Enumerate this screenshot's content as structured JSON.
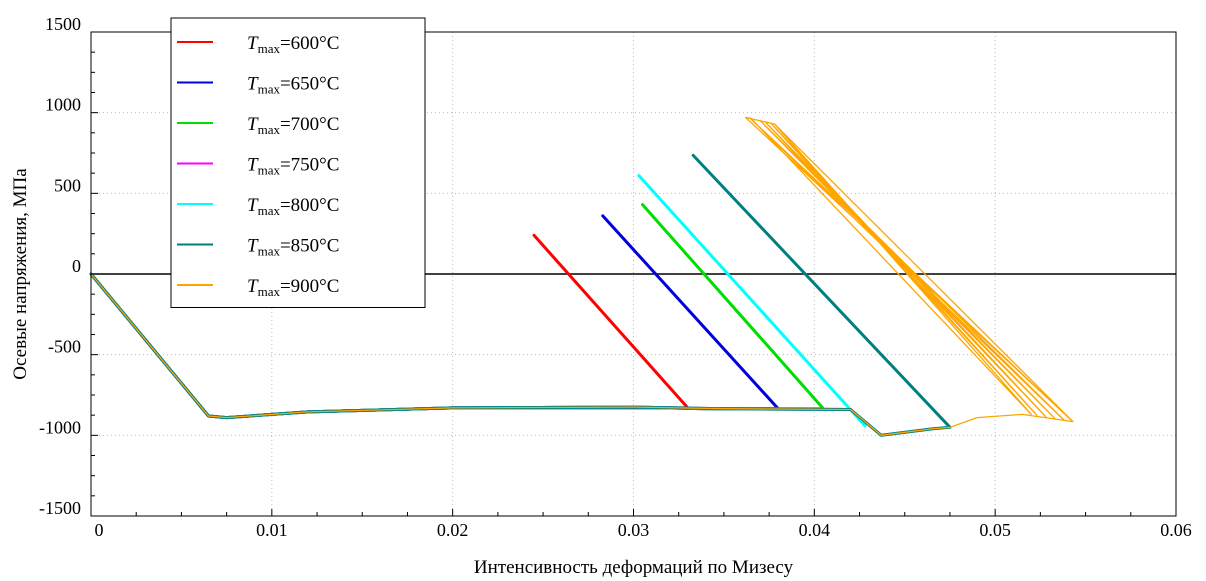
{
  "chart_data": {
    "type": "line",
    "title": "",
    "xlabel": "Интенсивность деформаций по Мизесу",
    "ylabel": "Осевые напряжения, МПа",
    "xlim": [
      0,
      0.06
    ],
    "ylim": [
      -1500,
      1500
    ],
    "x_ticks": [
      0,
      0.01,
      0.02,
      0.03,
      0.04,
      0.05,
      0.06
    ],
    "x_tick_labels": [
      "0",
      "0.01",
      "0.02",
      "0.03",
      "0.04",
      "0.05",
      "0.06"
    ],
    "y_ticks": [
      -1500,
      -1000,
      -500,
      0,
      500,
      1000,
      1500
    ],
    "y_tick_labels": [
      "-1500",
      "-1000",
      "-500",
      "0",
      "500",
      "1000",
      "1500"
    ],
    "grid": true,
    "legend_position": "top-left",
    "zero_line": true,
    "series": [
      {
        "name_prefix": "T",
        "name_sub": "max",
        "name_suffix": "=600°C",
        "color": "#ff0000",
        "points": [
          [
            0,
            0
          ],
          [
            0.0065,
            -880
          ],
          [
            0.0075,
            -890
          ],
          [
            0.012,
            -855
          ],
          [
            0.02,
            -830
          ],
          [
            0.033,
            -830
          ],
          [
            0.0245,
            240
          ]
        ]
      },
      {
        "name_prefix": "T",
        "name_sub": "max",
        "name_suffix": "=650°C",
        "color": "#0000dd",
        "points": [
          [
            0,
            0
          ],
          [
            0.0065,
            -880
          ],
          [
            0.0075,
            -890
          ],
          [
            0.012,
            -855
          ],
          [
            0.02,
            -830
          ],
          [
            0.03,
            -825
          ],
          [
            0.034,
            -835
          ],
          [
            0.038,
            -835
          ],
          [
            0.0283,
            360
          ]
        ]
      },
      {
        "name_prefix": "T",
        "name_sub": "max",
        "name_suffix": "=700°C",
        "color": "#00dd00",
        "points": [
          [
            0,
            0
          ],
          [
            0.0065,
            -880
          ],
          [
            0.0075,
            -890
          ],
          [
            0.012,
            -855
          ],
          [
            0.02,
            -830
          ],
          [
            0.03,
            -825
          ],
          [
            0.034,
            -835
          ],
          [
            0.0405,
            -835
          ],
          [
            0.0305,
            430
          ]
        ]
      },
      {
        "name_prefix": "T",
        "name_sub": "max",
        "name_suffix": "=750°C",
        "color": "#ff00ff",
        "points": [
          [
            0,
            0
          ],
          [
            0.0065,
            -880
          ],
          [
            0.0075,
            -890
          ],
          [
            0.012,
            -855
          ],
          [
            0.02,
            -830
          ],
          [
            0.03,
            -825
          ],
          [
            0.035,
            -835
          ],
          [
            0.042,
            -840
          ]
        ]
      },
      {
        "name_prefix": "T",
        "name_sub": "max",
        "name_suffix": "=800°C",
        "color": "#00ffff",
        "points": [
          [
            0,
            0
          ],
          [
            0.0065,
            -880
          ],
          [
            0.0075,
            -890
          ],
          [
            0.012,
            -855
          ],
          [
            0.02,
            -830
          ],
          [
            0.03,
            -825
          ],
          [
            0.035,
            -835
          ],
          [
            0.042,
            -840
          ],
          [
            0.0428,
            -940
          ],
          [
            0.0303,
            610
          ]
        ]
      },
      {
        "name_prefix": "T",
        "name_sub": "max",
        "name_suffix": "=850°C",
        "color": "#007f7f",
        "points": [
          [
            0,
            0
          ],
          [
            0.0065,
            -880
          ],
          [
            0.0075,
            -890
          ],
          [
            0.012,
            -855
          ],
          [
            0.02,
            -830
          ],
          [
            0.03,
            -825
          ],
          [
            0.035,
            -835
          ],
          [
            0.042,
            -840
          ],
          [
            0.0437,
            -1000
          ],
          [
            0.0465,
            -960
          ],
          [
            0.0475,
            -950
          ],
          [
            0.0333,
            735
          ]
        ]
      },
      {
        "name_prefix": "T",
        "name_sub": "max",
        "name_suffix": "=900°C",
        "color": "#ffa500",
        "points": [
          [
            0,
            0
          ],
          [
            0.0065,
            -880
          ],
          [
            0.0075,
            -890
          ],
          [
            0.012,
            -855
          ],
          [
            0.02,
            -830
          ],
          [
            0.03,
            -825
          ],
          [
            0.035,
            -835
          ],
          [
            0.042,
            -840
          ],
          [
            0.0437,
            -1000
          ],
          [
            0.0465,
            -960
          ],
          [
            0.0475,
            -950
          ],
          [
            0.049,
            -890
          ],
          [
            0.0515,
            -870
          ],
          [
            0.0543,
            -915
          ],
          [
            0.0362,
            970
          ],
          [
            0.0378,
            930
          ],
          [
            0.0543,
            -915
          ],
          [
            0.0365,
            960
          ],
          [
            0.0538,
            -905
          ],
          [
            0.037,
            950
          ],
          [
            0.0533,
            -895
          ],
          [
            0.0373,
            940
          ],
          [
            0.0528,
            -885
          ],
          [
            0.0376,
            935
          ],
          [
            0.0523,
            -875
          ],
          [
            0.0378,
            930
          ],
          [
            0.052,
            -870
          ],
          [
            0.0365,
            965
          ],
          [
            0.0362,
            970
          ]
        ]
      }
    ]
  }
}
